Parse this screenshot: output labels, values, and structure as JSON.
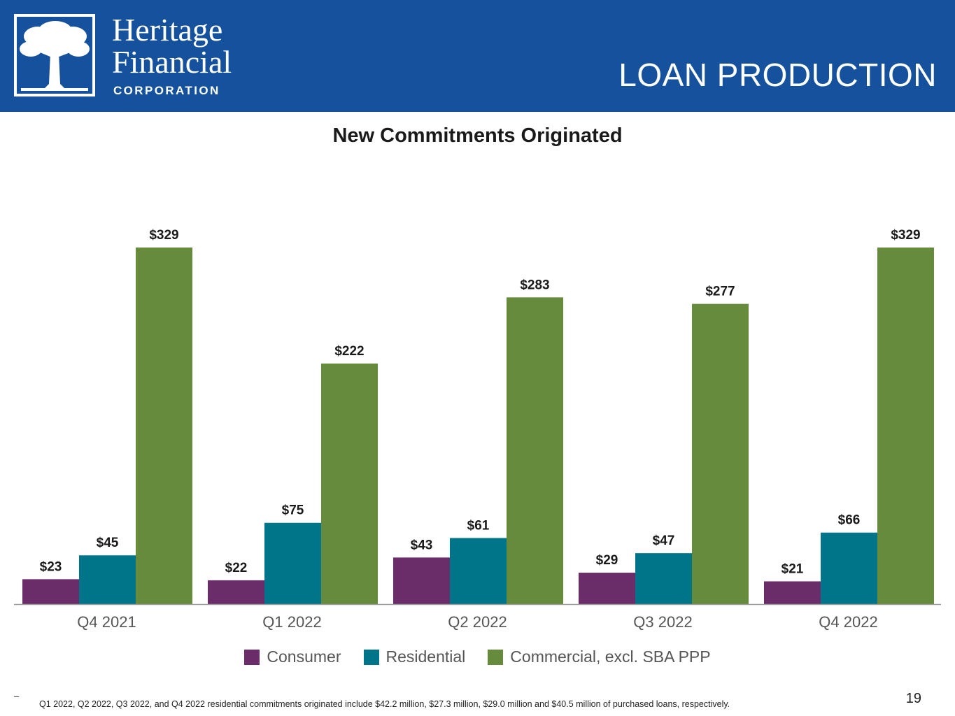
{
  "header": {
    "brand_line1": "Heritage",
    "brand_line2": "Financial",
    "brand_line3": "CORPORATION",
    "slide_title": "LOAN PRODUCTION",
    "logo_icon": "tree-logo-icon"
  },
  "colors": {
    "header_bg": "#15519C",
    "consumer": "#6A2D6A",
    "residential": "#00758A",
    "commercial": "#678B3C",
    "axis": "#999999"
  },
  "chart_data": {
    "type": "bar",
    "title": "New Commitments Originated",
    "categories": [
      "Q4 2021",
      "Q1 2022",
      "Q2 2022",
      "Q3 2022",
      "Q4 2022"
    ],
    "series": [
      {
        "name": "Consumer",
        "values": [
          23,
          22,
          43,
          29,
          21
        ],
        "labels": [
          "$23",
          "$22",
          "$43",
          "$29",
          "$21"
        ]
      },
      {
        "name": "Residential",
        "values": [
          45,
          75,
          61,
          47,
          66
        ],
        "labels": [
          "$45",
          "$75",
          "$61",
          "$47",
          "$66"
        ]
      },
      {
        "name": "Commercial, excl. SBA PPP",
        "values": [
          329,
          222,
          283,
          277,
          329
        ],
        "labels": [
          "$329",
          "$222",
          "$283",
          "$277",
          "$329"
        ]
      }
    ],
    "ylim": [
      0,
      329
    ],
    "grid": false,
    "legend_position": "bottom"
  },
  "footer": {
    "dash": "–",
    "footnote": "Q1 2022, Q2 2022, Q3 2022, and Q4 2022  residential commitments originated include $42.2 million, $27.3 million, $29.0 million and $40.5 million of purchased loans, respectively.",
    "page_number": "19"
  }
}
